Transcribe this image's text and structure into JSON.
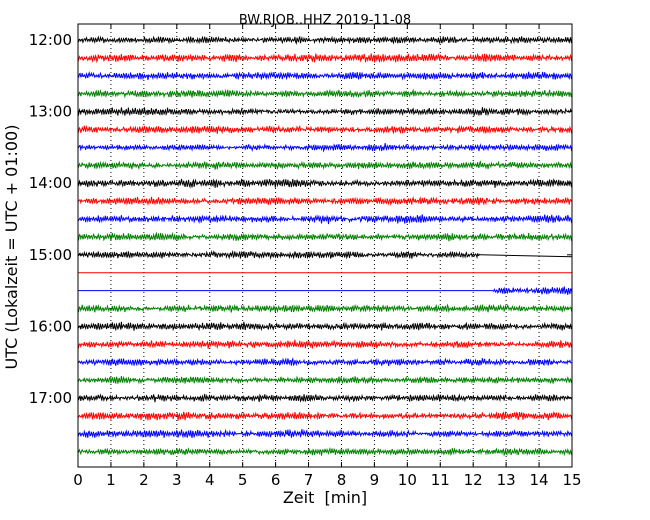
{
  "chart_data": {
    "type": "line",
    "title": "BW.RJOB..HHZ 2019-11-08",
    "xlabel": "Zeit  [min]",
    "ylabel": "UTC (Lokalzeit = UTC + 01:00)",
    "xlim": [
      0,
      15
    ],
    "x_ticks": [
      0,
      1,
      2,
      3,
      4,
      5,
      6,
      7,
      8,
      9,
      10,
      11,
      12,
      13,
      14,
      15
    ],
    "x_tick_labels": [
      "0",
      "1",
      "2",
      "3",
      "4",
      "5",
      "6",
      "7",
      "8",
      "9",
      "10",
      "11",
      "12",
      "13",
      "14",
      "15"
    ],
    "y_tick_labels": [
      "12:00",
      "13:00",
      "14:00",
      "15:00",
      "16:00",
      "17:00"
    ],
    "y_tick_rows": [
      0,
      4,
      8,
      12,
      16,
      20
    ],
    "grid": "vertical dotted",
    "trace_colors": [
      "#000000",
      "#ff0000",
      "#0000ff",
      "#008000"
    ],
    "traces": [
      {
        "start": "12:00",
        "color": "#000000",
        "data_from": 0,
        "data_until": 15,
        "level": 0.55
      },
      {
        "start": "12:15",
        "color": "#ff0000",
        "data_from": 0,
        "data_until": 15,
        "level": 0.6
      },
      {
        "start": "12:30",
        "color": "#0000ff",
        "data_from": 0,
        "data_until": 15,
        "level": 0.55
      },
      {
        "start": "12:45",
        "color": "#008000",
        "data_from": 0,
        "data_until": 15,
        "level": 0.55
      },
      {
        "start": "13:00",
        "color": "#000000",
        "data_from": 0,
        "data_until": 15,
        "level": 0.55
      },
      {
        "start": "13:15",
        "color": "#ff0000",
        "data_from": 0,
        "data_until": 15,
        "level": 0.6
      },
      {
        "start": "13:30",
        "color": "#0000ff",
        "data_from": 0,
        "data_until": 15,
        "level": 0.5
      },
      {
        "start": "13:45",
        "color": "#008000",
        "data_from": 0,
        "data_until": 15,
        "level": 0.55
      },
      {
        "start": "14:00",
        "color": "#000000",
        "data_from": 0,
        "data_until": 15,
        "level": 0.6
      },
      {
        "start": "14:15",
        "color": "#ff0000",
        "data_from": 0,
        "data_until": 15,
        "level": 0.55
      },
      {
        "start": "14:30",
        "color": "#0000ff",
        "data_from": 0,
        "data_until": 15,
        "level": 0.6
      },
      {
        "start": "14:45",
        "color": "#008000",
        "data_from": 0,
        "data_until": 15,
        "level": 0.55
      },
      {
        "start": "15:00",
        "color": "#000000",
        "data_from": 0,
        "data_until": 12.2,
        "level": 0.55
      },
      {
        "start": "15:15",
        "color": "#ff0000",
        "data_from": 15,
        "data_until": 15,
        "level": 0
      },
      {
        "start": "15:30",
        "color": "#0000ff",
        "data_from": 12.6,
        "data_until": 15,
        "level": 0.6
      },
      {
        "start": "15:45",
        "color": "#008000",
        "data_from": 0,
        "data_until": 15,
        "level": 0.6
      },
      {
        "start": "16:00",
        "color": "#000000",
        "data_from": 0,
        "data_until": 15,
        "level": 0.6
      },
      {
        "start": "16:15",
        "color": "#ff0000",
        "data_from": 0,
        "data_until": 15,
        "level": 0.55
      },
      {
        "start": "16:30",
        "color": "#0000ff",
        "data_from": 0,
        "data_until": 15,
        "level": 0.55
      },
      {
        "start": "16:45",
        "color": "#008000",
        "data_from": 0,
        "data_until": 15,
        "level": 0.5
      },
      {
        "start": "17:00",
        "color": "#000000",
        "data_from": 0,
        "data_until": 15,
        "level": 0.55
      },
      {
        "start": "17:15",
        "color": "#ff0000",
        "data_from": 0,
        "data_until": 15,
        "level": 0.6
      },
      {
        "start": "17:30",
        "color": "#0000ff",
        "data_from": 0,
        "data_until": 15,
        "level": 0.55
      },
      {
        "start": "17:45",
        "color": "#008000",
        "data_from": 0,
        "data_until": 15,
        "level": 0.5
      }
    ]
  }
}
